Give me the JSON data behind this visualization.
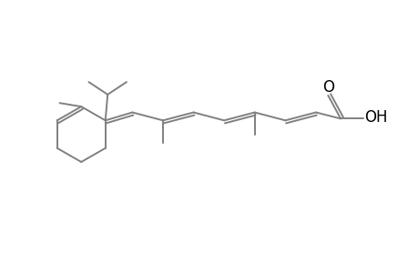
{
  "background": "#ffffff",
  "line_color": "#808080",
  "text_color": "#000000",
  "line_width": 1.4,
  "font_size": 12,
  "fig_width": 4.6,
  "fig_height": 3.0,
  "dpi": 100
}
